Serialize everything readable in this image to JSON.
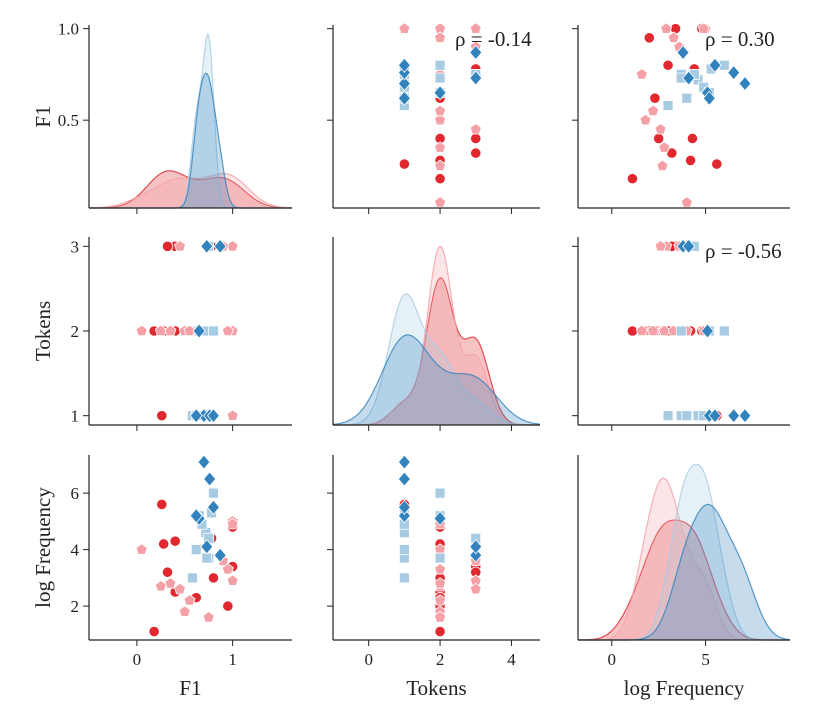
{
  "chart_data": {
    "type": "pairplot",
    "variables": [
      "F1",
      "Tokens",
      "log Frequency"
    ],
    "xlims": [
      [
        -0.5,
        1.62
      ],
      [
        -1,
        4.8
      ],
      [
        -1.8,
        9.5
      ]
    ],
    "ylims": [
      [
        0.02,
        1.02
      ],
      [
        0.89,
        3.11
      ],
      [
        0.8,
        7.35
      ]
    ],
    "xticks": [
      [
        0,
        1
      ],
      [
        0,
        2,
        4
      ],
      [
        0,
        5
      ]
    ],
    "yticks": [
      [
        0.5,
        {
          "value": 1,
          "label": "1.0"
        }
      ],
      [
        1,
        2,
        3
      ],
      [
        2,
        4,
        6
      ]
    ],
    "annotations": [
      "ρ = -0.14",
      "ρ = 0.30",
      "ρ = -0.56"
    ],
    "series": [
      {
        "color": "#e0282e",
        "marker": "circle",
        "values": [
          [
            0.26,
            0.18,
            0.28,
            0.4,
            0.62,
            0.8,
            1.0,
            1.0,
            0.78,
            0.4,
            0.32,
            0.95
          ],
          [
            1,
            2,
            2,
            2,
            2,
            2,
            2,
            3,
            3,
            3,
            3,
            2
          ],
          [
            5.6,
            1.1,
            4.2,
            2.5,
            2.3,
            3.0,
            4.8,
            3.4,
            4.4,
            4.3,
            3.2,
            2.0
          ]
        ]
      },
      {
        "color": "#f4a0a6",
        "marker": "pentagon",
        "values": [
          [
            1.0,
            0.05,
            0.25,
            0.5,
            0.55,
            0.75,
            1.0,
            1.0,
            0.9,
            0.45,
            0.35,
            0.95
          ],
          [
            1,
            2,
            2,
            2,
            2,
            2,
            2,
            3,
            3,
            3,
            2,
            2
          ],
          [
            5.0,
            4.0,
            2.7,
            1.8,
            2.2,
            1.6,
            4.9,
            2.9,
            3.6,
            2.6,
            2.8,
            3.3
          ]
        ]
      },
      {
        "color": "#a6cbe3",
        "marker": "square",
        "values": [
          [
            0.58,
            0.72,
            0.75,
            0.78,
            0.68,
            0.65,
            0.73,
            0.8,
            0.75,
            0.62
          ],
          [
            1,
            1,
            1,
            1,
            1,
            2,
            2,
            2,
            3,
            1
          ],
          [
            3.0,
            4.6,
            3.7,
            5.3,
            4.9,
            5.2,
            3.7,
            6.0,
            4.4,
            4.0
          ]
        ]
      },
      {
        "color": "#3182bd",
        "marker": "diamond",
        "values": [
          [
            0.7,
            0.76,
            0.65,
            0.87,
            0.73,
            0.62,
            0.8
          ],
          [
            1,
            1,
            2,
            3,
            3,
            1,
            1
          ],
          [
            7.1,
            6.5,
            5.1,
            3.8,
            4.1,
            5.2,
            5.5
          ]
        ]
      }
    ]
  }
}
